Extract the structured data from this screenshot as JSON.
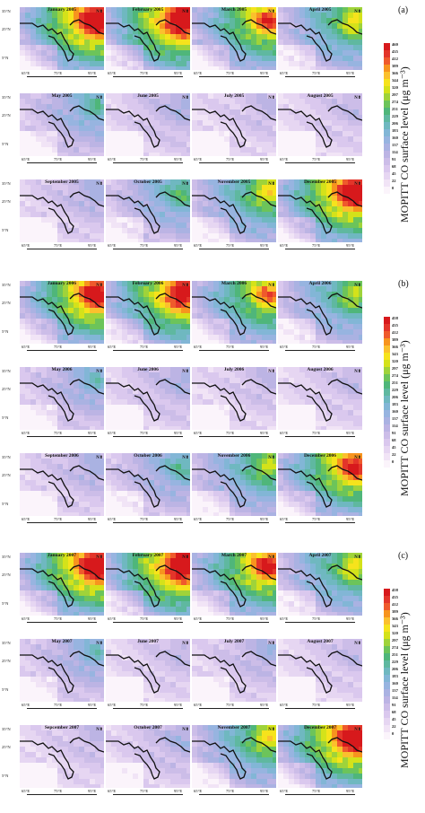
{
  "panels": [
    {
      "label": "(a)",
      "months": [
        "January 2005",
        "February 2005",
        "March 2005",
        "April 2005",
        "May 2005",
        "June 2005",
        "July 2005",
        "August 2005",
        "September 2005",
        "October 2005",
        "November 2005",
        "December 2005"
      ],
      "intensity": [
        0.85,
        0.85,
        0.7,
        0.55,
        0.35,
        0.2,
        0.15,
        0.15,
        0.2,
        0.4,
        0.55,
        0.85
      ],
      "legend_values": [
        "460",
        "435",
        "412",
        "389",
        "366",
        "344",
        "320",
        "297",
        "274",
        "251",
        "229",
        "206",
        "183",
        "160",
        "137",
        "114",
        "91",
        "68",
        "45",
        "22",
        "0"
      ]
    },
    {
      "label": "(b)",
      "months": [
        "January 2006",
        "February 2006",
        "March 2006",
        "April 2006",
        "May 2006",
        "June 2006",
        "July 2006",
        "August 2006",
        "September 2006",
        "October 2006",
        "November 2006",
        "December 2006"
      ],
      "intensity": [
        0.8,
        0.8,
        0.65,
        0.5,
        0.3,
        0.2,
        0.15,
        0.15,
        0.2,
        0.35,
        0.5,
        0.75
      ],
      "legend_values": [
        "458",
        "435",
        "412",
        "389",
        "366",
        "343",
        "320",
        "297",
        "274",
        "251",
        "229",
        "206",
        "183",
        "160",
        "137",
        "114",
        "91",
        "68",
        "45",
        "22",
        "0"
      ]
    },
    {
      "label": "(c)",
      "months": [
        "January 2007",
        "February 2007",
        "March 2007",
        "April 2007",
        "May 2007",
        "June 2007",
        "July 2007",
        "August 2007",
        "Sepcember 2007",
        "October 2007",
        "November 2007",
        "December 2007"
      ],
      "intensity": [
        0.85,
        0.85,
        0.75,
        0.55,
        0.3,
        0.15,
        0.2,
        0.15,
        0.15,
        0.2,
        0.55,
        0.85
      ],
      "legend_values": [
        "458",
        "435",
        "412",
        "389",
        "366",
        "343",
        "320",
        "297",
        "274",
        "251",
        "229",
        "206",
        "183",
        "160",
        "137",
        "114",
        "91",
        "68",
        "45",
        "22",
        "0"
      ]
    }
  ],
  "colorbar_colors": [
    "#d7191c",
    "#e3352a",
    "#ef5a2c",
    "#f7941e",
    "#fbc02d",
    "#f6e31c",
    "#d4e21a",
    "#9fd33a",
    "#6cc45a",
    "#4fb67a",
    "#5fb8a0",
    "#6fb8c0",
    "#82b6d6",
    "#97b4e0",
    "#aab2e2",
    "#bcb4e4",
    "#ccbde8",
    "#dac8ee",
    "#e6d6f2",
    "#f1e4f6",
    "#fbf4fb"
  ],
  "colorbar_label": "MOPITT CO surface level (μg m⁻³)",
  "lat_labels": [
    "35°N",
    "25°N",
    "5°N"
  ],
  "lon_labels": [
    "65°E",
    "75°E",
    "95°E"
  ],
  "north_label": "N"
}
